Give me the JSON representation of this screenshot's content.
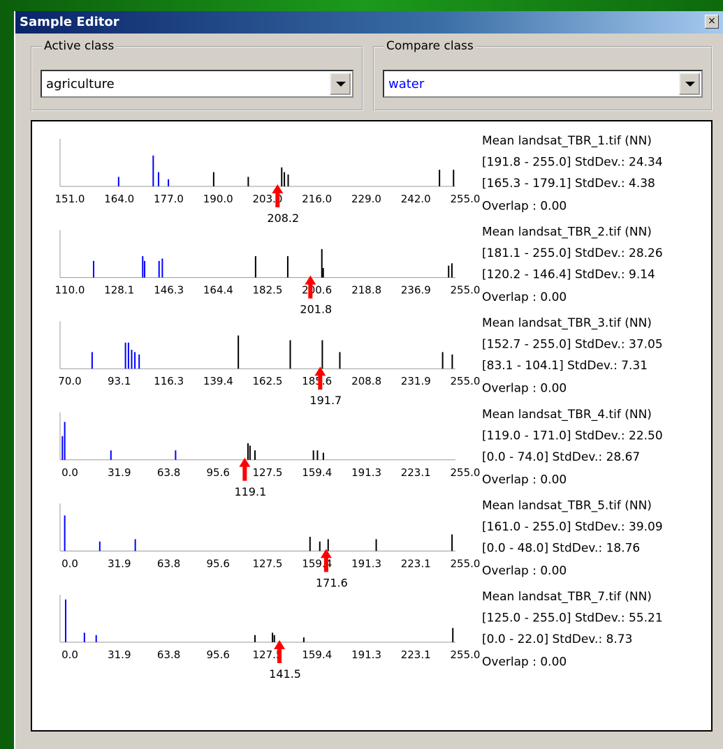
{
  "window": {
    "title": "Sample Editor"
  },
  "active_class": {
    "label": "Active class",
    "value": "agriculture",
    "color": "#000000"
  },
  "compare_class": {
    "label": "Compare class",
    "value": "water",
    "color": "#0000ff"
  },
  "plots": [
    {
      "xlim": [
        151,
        255
      ],
      "ticks": [
        {
          "value": 151,
          "label": "151.0"
        },
        {
          "value": 164,
          "label": "164.0"
        },
        {
          "value": 177,
          "label": "177.0"
        },
        {
          "value": 190,
          "label": "190.0"
        },
        {
          "value": 203,
          "label": "203.0"
        },
        {
          "value": 216,
          "label": "216.0"
        },
        {
          "value": 229,
          "label": "229.0"
        },
        {
          "value": 242,
          "label": "242.0"
        },
        {
          "value": 255,
          "label": "255.0"
        }
      ],
      "marker": 208.2,
      "info": [
        "Mean landsat_TBR_1.tif (NN)",
        "[191.8 - 255.0] StdDev.: 24.34",
        "[165.3 - 179.1] StdDev.: 4.38",
        "Overlap : 0.00"
      ],
      "active_bars": [
        {
          "x": 191.4,
          "h": 0.3
        },
        {
          "x": 200.5,
          "h": 0.2
        },
        {
          "x": 209.3,
          "h": 0.4
        },
        {
          "x": 210,
          "h": 0.3
        },
        {
          "x": 211,
          "h": 0.25
        },
        {
          "x": 250.8,
          "h": 0.35
        },
        {
          "x": 254.5,
          "h": 0.35
        }
      ],
      "compare_bars": [
        {
          "x": 166.4,
          "h": 0.2
        },
        {
          "x": 175.5,
          "h": 0.65
        },
        {
          "x": 176.9,
          "h": 0.3
        },
        {
          "x": 179.5,
          "h": 0.15
        }
      ]
    },
    {
      "xlim": [
        110,
        255
      ],
      "ticks": [
        {
          "value": 110,
          "label": "110.0"
        },
        128.1,
        146.3,
        164.4,
        182.5,
        200.6,
        218.8,
        236.9,
        {
          "value": 255,
          "label": "255.0"
        }
      ],
      "marker": 201.8,
      "info": [
        "Mean landsat_TBR_2.tif (NN)",
        "[181.1 - 255.0] StdDev.: 28.26",
        "[120.2 - 146.4] StdDev.: 9.14",
        "Overlap : 0.00"
      ],
      "active_bars": [
        {
          "x": 181.7,
          "h": 0.45
        },
        {
          "x": 193.5,
          "h": 0.45
        },
        {
          "x": 206,
          "h": 0.6
        },
        {
          "x": 206.5,
          "h": 0.2
        },
        {
          "x": 252.5,
          "h": 0.25
        },
        {
          "x": 253.7,
          "h": 0.3
        }
      ],
      "compare_bars": [
        {
          "x": 122.3,
          "h": 0.35
        },
        {
          "x": 140.3,
          "h": 0.45
        },
        {
          "x": 141,
          "h": 0.35
        },
        {
          "x": 146.3,
          "h": 0.35
        },
        {
          "x": 147.5,
          "h": 0.4
        }
      ]
    },
    {
      "xlim": [
        70,
        255
      ],
      "ticks": [
        {
          "value": 70,
          "label": "70.0"
        },
        93.1,
        116.3,
        139.4,
        162.5,
        185.6,
        208.8,
        231.9,
        {
          "value": 255,
          "label": "255.0"
        }
      ],
      "marker": 191.7,
      "info": [
        "Mean landsat_TBR_3.tif (NN)",
        "[152.7 - 255.0] StdDev.: 37.05",
        "[83.1 - 104.1] StdDev.: 7.31",
        "Overlap : 0.00"
      ],
      "active_bars": [
        {
          "x": 153.4,
          "h": 0.7
        },
        {
          "x": 177.7,
          "h": 0.6
        },
        {
          "x": 192.7,
          "h": 0.6
        },
        {
          "x": 200.9,
          "h": 0.35
        },
        {
          "x": 249,
          "h": 0.35
        },
        {
          "x": 253.5,
          "h": 0.3
        }
      ],
      "compare_bars": [
        {
          "x": 85,
          "h": 0.35
        },
        {
          "x": 100.6,
          "h": 0.55
        },
        {
          "x": 102,
          "h": 0.55
        },
        {
          "x": 103.5,
          "h": 0.4
        },
        {
          "x": 105,
          "h": 0.35
        },
        {
          "x": 107,
          "h": 0.3
        }
      ]
    },
    {
      "xlim": [
        0,
        255
      ],
      "ticks": [
        {
          "value": 0,
          "label": "0.0"
        },
        31.9,
        63.8,
        95.6,
        127.5,
        159.4,
        191.3,
        223.1,
        {
          "value": 255,
          "label": "255.0"
        }
      ],
      "marker": 119.1,
      "info": [
        "Mean landsat_TBR_4.tif (NN)",
        "[119.0 - 171.0] StdDev.: 22.50",
        "[0.0 - 74.0] StdDev.: 28.67",
        "Overlap : 0.00"
      ],
      "active_bars": [
        {
          "x": 121.2,
          "h": 0.35
        },
        {
          "x": 122.5,
          "h": 0.3
        },
        {
          "x": 125.7,
          "h": 0.2
        },
        {
          "x": 163.4,
          "h": 0.2
        },
        {
          "x": 166,
          "h": 0.2
        },
        {
          "x": 169.8,
          "h": 0.15
        }
      ],
      "compare_bars": [
        {
          "x": 1.5,
          "h": 0.5
        },
        {
          "x": 3,
          "h": 0.8
        },
        {
          "x": 32.8,
          "h": 0.2
        },
        {
          "x": 74.5,
          "h": 0.2
        }
      ]
    },
    {
      "xlim": [
        0,
        255
      ],
      "ticks": [
        {
          "value": 0,
          "label": "0.0"
        },
        31.9,
        63.8,
        95.6,
        127.5,
        159.4,
        191.3,
        223.1,
        {
          "value": 255,
          "label": "255.0"
        }
      ],
      "marker": 171.6,
      "info": [
        "Mean landsat_TBR_5.tif (NN)",
        "[161.0 - 255.0] StdDev.: 39.09",
        "[0.0 - 48.0] StdDev.: 18.76",
        "Overlap : 0.00"
      ],
      "active_bars": [
        {
          "x": 161.2,
          "h": 0.3
        },
        {
          "x": 167.5,
          "h": 0.2
        },
        {
          "x": 172.9,
          "h": 0.25
        },
        {
          "x": 203.9,
          "h": 0.25
        },
        {
          "x": 252.8,
          "h": 0.35
        }
      ],
      "compare_bars": [
        {
          "x": 3,
          "h": 0.75
        },
        {
          "x": 25.6,
          "h": 0.2
        },
        {
          "x": 48.5,
          "h": 0.25
        }
      ]
    },
    {
      "xlim": [
        0,
        255
      ],
      "ticks": [
        {
          "value": 0,
          "label": "0.0"
        },
        31.9,
        63.8,
        95.6,
        127.5,
        159.4,
        191.3,
        223.1,
        {
          "value": 255,
          "label": "255.0"
        }
      ],
      "marker": 141.5,
      "info": [
        "Mean landsat_TBR_7.tif (NN)",
        "[125.0 - 255.0] StdDev.: 55.21",
        "[0.0 - 22.0] StdDev.: 8.73",
        "Overlap : 0.00"
      ],
      "active_bars": [
        {
          "x": 125.7,
          "h": 0.15
        },
        {
          "x": 137,
          "h": 0.2
        },
        {
          "x": 138.2,
          "h": 0.15
        },
        {
          "x": 157.2,
          "h": 0.1
        },
        {
          "x": 253.3,
          "h": 0.3
        }
      ],
      "compare_bars": [
        {
          "x": 3.6,
          "h": 0.9
        },
        {
          "x": 15.7,
          "h": 0.2
        },
        {
          "x": 23.3,
          "h": 0.15
        }
      ]
    }
  ]
}
